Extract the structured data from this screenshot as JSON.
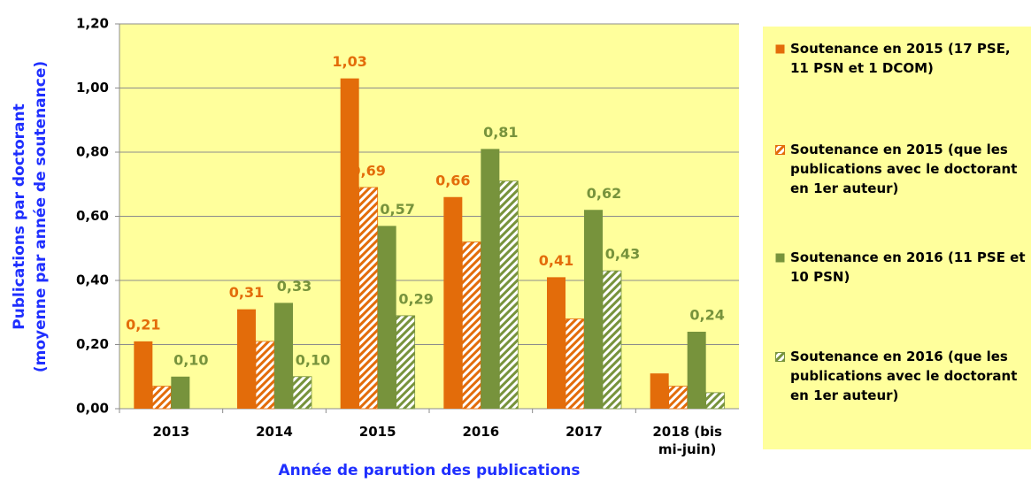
{
  "chart_data": {
    "type": "bar",
    "ylabel": [
      "Publications par doctorant",
      "(moyenne par année de soutenance)"
    ],
    "xlabel": "Année de parution des publications",
    "categories": [
      "2013",
      "2014",
      "2015",
      "2016",
      "2017",
      "2018 (bis mi-juin)"
    ],
    "series": [
      {
        "name": "Soutenance en 2015 (17 PSE, 11 PSN et 1 DCOM)",
        "color": "#e36c0a",
        "hatch": false,
        "values": [
          0.21,
          0.31,
          1.03,
          0.66,
          0.41,
          0.11
        ],
        "value_labels": [
          "0,21",
          "0,31",
          "1,03",
          "0,66",
          "0,41",
          null
        ]
      },
      {
        "name": "Soutenance en 2015 (que les publications avec le doctorant en 1er auteur)",
        "color": "#e36c0a",
        "hatch": true,
        "values": [
          0.07,
          0.21,
          0.69,
          0.52,
          0.28,
          0.07
        ],
        "value_labels": [
          null,
          null,
          "0,69",
          null,
          null,
          null
        ]
      },
      {
        "name": "Soutenance en 2016 (11 PSE et 10 PSN)",
        "color": "#77933c",
        "hatch": false,
        "values": [
          0.1,
          0.33,
          0.57,
          0.81,
          0.62,
          0.24
        ],
        "value_labels": [
          "0,10",
          "0,33",
          "0,57",
          "0,81",
          "0,62",
          "0,24"
        ]
      },
      {
        "name": "Soutenance en 2016 (que les publications avec le doctorant en 1er auteur)",
        "color": "#77933c",
        "hatch": true,
        "values": [
          null,
          0.1,
          0.29,
          0.71,
          0.43,
          0.05
        ],
        "value_labels": [
          null,
          "0,10",
          "0,29",
          null,
          "0,43",
          null
        ]
      }
    ],
    "ylim": [
      0,
      1.2
    ],
    "yticks": [
      {
        "value": 0,
        "label": "0,00"
      },
      {
        "value": 0.2,
        "label": "0,20"
      },
      {
        "value": 0.4,
        "label": "0,40"
      },
      {
        "value": 0.6,
        "label": "0,60"
      },
      {
        "value": 0.8,
        "label": "0,80"
      },
      {
        "value": 1.0,
        "label": "1,00"
      },
      {
        "value": 1.2,
        "label": "1,20"
      }
    ],
    "grid": true
  }
}
